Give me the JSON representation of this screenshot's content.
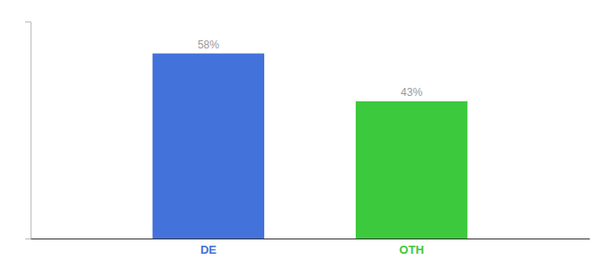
{
  "chart_data": {
    "type": "bar",
    "categories": [
      "DE",
      "OTH"
    ],
    "values": [
      58,
      43
    ],
    "value_labels": [
      "58%",
      "43%"
    ],
    "colors": [
      "#4472db",
      "#3dc93d"
    ],
    "ylim": [
      0,
      68
    ],
    "data_labels": true,
    "tick_labels": "x"
  }
}
